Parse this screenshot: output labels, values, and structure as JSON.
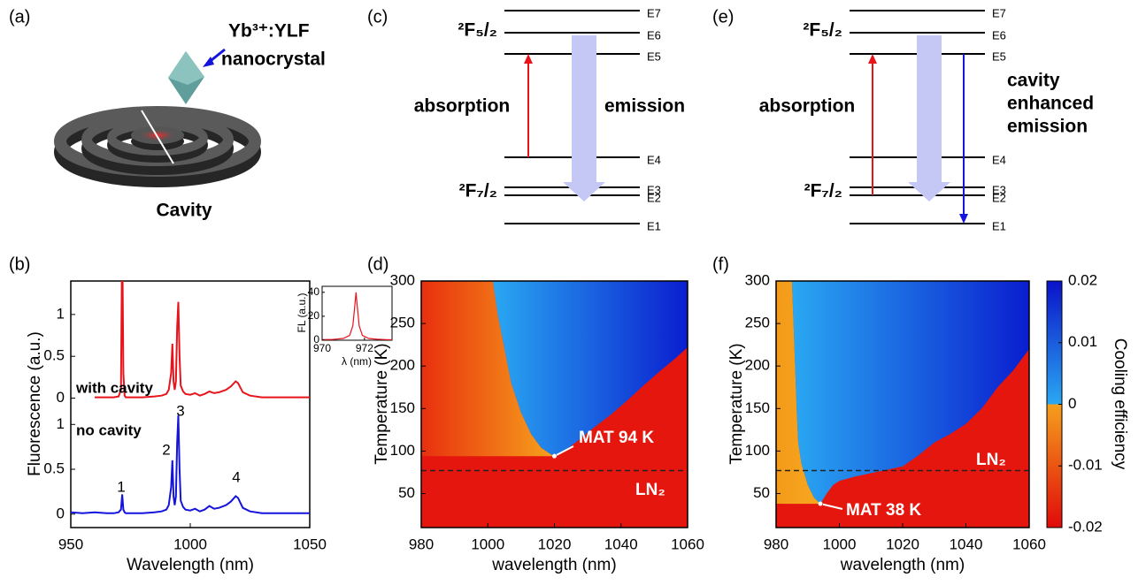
{
  "panels": {
    "labels": [
      "(a)",
      "(b)",
      "(c)",
      "(d)",
      "(e)",
      "(f)"
    ]
  },
  "illustration": {
    "crystal_label": [
      "Yb³⁺:YLF",
      "nanocrystal"
    ],
    "cavity_label": "Cavity"
  },
  "level_diagrams": [
    {
      "upper_manifold": "²F₅/₂",
      "lower_manifold": "²F₇/₂",
      "levels": [
        "E7",
        "E6",
        "E5",
        "E4",
        "E3",
        "E2",
        "E1"
      ],
      "left_label": "absorption",
      "right_label": [
        "emission"
      ]
    },
    {
      "upper_manifold": "²F₅/₂",
      "lower_manifold": "²F₇/₂",
      "levels": [
        "E7",
        "E6",
        "E5",
        "E4",
        "E3",
        "E2",
        "E1"
      ],
      "left_label": "absorption",
      "right_label": [
        "cavity",
        "enhanced",
        "emission"
      ]
    }
  ],
  "chart_data": [
    {
      "type": "line",
      "color": "#e8141c",
      "annotations": [
        "with cavity"
      ],
      "xlim": [
        950,
        1050
      ],
      "ylim": [
        -0.1,
        1.4
      ],
      "yticks": [
        0,
        0.5,
        1
      ],
      "x": [
        950,
        955,
        960,
        965,
        968,
        970,
        971,
        971.5,
        972,
        972.5,
        973,
        975,
        980,
        985,
        988,
        990,
        991,
        992,
        992.5,
        993,
        993.5,
        994,
        994.5,
        995,
        995.5,
        996,
        997,
        998,
        1000,
        1002,
        1004,
        1006,
        1008,
        1010,
        1012,
        1015,
        1017,
        1019,
        1020,
        1022,
        1025,
        1030,
        1035,
        1040,
        1045,
        1050
      ],
      "values": [
        null,
        null,
        0.01,
        0.01,
        0.01,
        0.02,
        0.1,
        2.0,
        0.3,
        0.03,
        0.01,
        0.01,
        0.01,
        0.02,
        0.03,
        0.05,
        0.1,
        0.3,
        0.65,
        0.2,
        0.1,
        0.2,
        0.85,
        1.15,
        0.5,
        0.15,
        0.08,
        0.05,
        0.04,
        0.06,
        0.03,
        0.05,
        0.08,
        0.06,
        0.07,
        0.1,
        0.14,
        0.2,
        0.18,
        0.07,
        0.03,
        0.01,
        0.01,
        0.01,
        0.01,
        0.01
      ]
    },
    {
      "type": "line",
      "color": "#1414dc",
      "annotations": [
        "no cavity"
      ],
      "peak_labels": [
        "1",
        "2",
        "3",
        "4"
      ],
      "xlabel": "Wavelength (nm)",
      "ylabel": "Fluorescence (a.u.)",
      "xlim": [
        950,
        1050
      ],
      "ylim": [
        -0.15,
        1.2
      ],
      "xticks": [
        950,
        1000,
        1050
      ],
      "yticks": [
        0,
        0.5,
        1
      ],
      "x": [
        950,
        955,
        960,
        965,
        968,
        970,
        971,
        971.5,
        972,
        972.5,
        973,
        975,
        980,
        985,
        988,
        990,
        991,
        992,
        992.5,
        993,
        993.5,
        994,
        994.5,
        995,
        995.5,
        996,
        997,
        998,
        1000,
        1002,
        1004,
        1006,
        1008,
        1010,
        1012,
        1015,
        1017,
        1019,
        1020,
        1022,
        1025,
        1030,
        1035,
        1040,
        1045,
        1050
      ],
      "values": [
        0.02,
        0.01,
        0.02,
        0.01,
        0.01,
        0.02,
        0.05,
        0.22,
        0.05,
        0.02,
        0.01,
        0.01,
        0.01,
        0.02,
        0.03,
        0.05,
        0.1,
        0.3,
        0.6,
        0.2,
        0.1,
        0.2,
        0.8,
        1.1,
        0.5,
        0.15,
        0.08,
        0.05,
        0.04,
        0.06,
        0.03,
        0.05,
        0.09,
        0.06,
        0.07,
        0.1,
        0.14,
        0.2,
        0.18,
        0.07,
        0.03,
        0.01,
        0.01,
        0.01,
        0.01,
        0.01
      ]
    },
    {
      "type": "line",
      "color": "#e8141c",
      "xlabel": "λ (nm)",
      "ylabel": "FL (a.u.)",
      "xlim": [
        970,
        973.3
      ],
      "ylim": [
        0,
        45
      ],
      "xticks": [
        970,
        972
      ],
      "yticks": [
        0,
        20,
        40
      ],
      "x": [
        970,
        970.5,
        971,
        971.3,
        971.45,
        971.55,
        971.6,
        971.65,
        971.75,
        971.9,
        972.2,
        972.6,
        973,
        973.3
      ],
      "values": [
        0.5,
        0.7,
        1.5,
        4,
        12,
        30,
        40,
        30,
        12,
        4,
        1.5,
        0.8,
        0.5,
        0.4
      ]
    },
    {
      "type": "heatmap",
      "xlabel": "wavelength (nm)",
      "ylabel": "Temperature (K)",
      "xlim": [
        980,
        1060
      ],
      "ylim": [
        10,
        300
      ],
      "xticks": [
        980,
        1000,
        1020,
        1040,
        1060
      ],
      "yticks": [
        50,
        100,
        150,
        200,
        250,
        300
      ],
      "boundary": {
        "x": [
          1001.5,
          1003,
          1005,
          1007,
          1010,
          1013,
          1016,
          1019,
          1020,
          1023,
          1027,
          1032,
          1037,
          1042,
          1047,
          1052,
          1056,
          1060
        ],
        "y": [
          300,
          260,
          220,
          180,
          145,
          120,
          104,
          96,
          94,
          100,
          112,
          128,
          143,
          160,
          178,
          195,
          208,
          222
        ]
      },
      "colors": {
        "heating": "#e4160e",
        "warm_gradient": [
          "#e8300e",
          "#f7a21c"
        ],
        "cooling_gradient": [
          "#2aa8f2",
          "#0a1ecf"
        ]
      },
      "ln2_temperature": 77,
      "ln2_label": "LN₂",
      "mat_label": "MAT 94 K"
    },
    {
      "type": "heatmap",
      "xlabel": "wavelength (nm)",
      "ylabel": "Temperature (K)",
      "xlim": [
        980,
        1060
      ],
      "ylim": [
        10,
        300
      ],
      "xticks": [
        980,
        1000,
        1020,
        1040,
        1060
      ],
      "yticks": [
        50,
        100,
        150,
        200,
        250,
        300
      ],
      "boundary": {
        "x": [
          985,
          985.5,
          986,
          986.5,
          987,
          988,
          990,
          992,
          994,
          996,
          998,
          1000,
          1005,
          1010,
          1015,
          1020,
          1025,
          1030,
          1035,
          1040,
          1045,
          1050,
          1055,
          1060
        ],
        "y": [
          300,
          250,
          200,
          150,
          110,
          85,
          60,
          45,
          38,
          50,
          60,
          65,
          70,
          74,
          78,
          82,
          95,
          110,
          120,
          132,
          150,
          175,
          195,
          220
        ]
      },
      "colors": {
        "heating": "#e4160e",
        "warm_gradient": [
          "#f39a1a",
          "#f7a81e"
        ],
        "cooling_gradient": [
          "#2aa8f2",
          "#0a1ecf"
        ]
      },
      "ln2_temperature": 77,
      "ln2_label": "LN₂",
      "mat_label": "MAT 38 K",
      "colorbar": {
        "label": "Cooling efficiency",
        "clim": [
          -0.02,
          0.02
        ],
        "ticks": [
          0.02,
          0.01,
          0,
          -0.01,
          -0.02
        ],
        "colors": [
          "#e00a0a",
          "#f5a01c",
          "#2aa8f2",
          "#0a12c8"
        ]
      }
    }
  ]
}
